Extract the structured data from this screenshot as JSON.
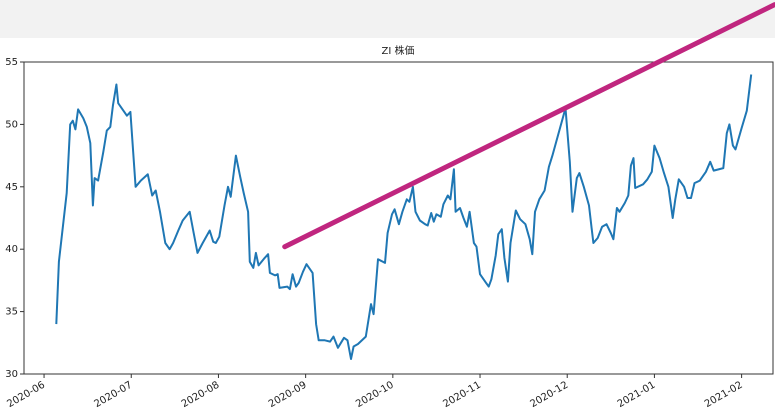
{
  "chart_data": {
    "type": "line",
    "title": "ZI 株価",
    "x": [
      0.14,
      0.17,
      0.26,
      0.3,
      0.33,
      0.36,
      0.39,
      0.45,
      0.49,
      0.53,
      0.56,
      0.58,
      0.62,
      0.68,
      0.72,
      0.76,
      0.79,
      0.83,
      0.85,
      0.92,
      0.95,
      0.99,
      1.02,
      1.05,
      1.11,
      1.19,
      1.24,
      1.28,
      1.33,
      1.39,
      1.44,
      1.48,
      1.54,
      1.59,
      1.67,
      1.71,
      1.76,
      1.82,
      1.9,
      1.94,
      1.97,
      2.01,
      2.07,
      2.11,
      2.14,
      2.2,
      2.25,
      2.29,
      2.34,
      2.36,
      2.4,
      2.43,
      2.46,
      2.53,
      2.57,
      2.59,
      2.65,
      2.68,
      2.7,
      2.79,
      2.82,
      2.85,
      2.89,
      2.92,
      2.97,
      3.01,
      3.08,
      3.12,
      3.15,
      3.22,
      3.28,
      3.32,
      3.37,
      3.44,
      3.48,
      3.52,
      3.55,
      3.6,
      3.69,
      3.75,
      3.78,
      3.83,
      3.91,
      3.94,
      3.99,
      4.02,
      4.07,
      4.11,
      4.16,
      4.19,
      4.23,
      4.26,
      4.31,
      4.37,
      4.4,
      4.44,
      4.47,
      4.5,
      4.55,
      4.58,
      4.63,
      4.66,
      4.7,
      4.72,
      4.77,
      4.81,
      4.85,
      4.88,
      4.93,
      4.96,
      5.0,
      5.07,
      5.1,
      5.13,
      5.18,
      5.21,
      5.25,
      5.28,
      5.32,
      5.35,
      5.41,
      5.46,
      5.52,
      5.57,
      5.6,
      5.63,
      5.68,
      5.74,
      5.79,
      5.83,
      5.98,
      6.03,
      6.06,
      6.11,
      6.14,
      6.19,
      6.25,
      6.28,
      6.3,
      6.35,
      6.4,
      6.45,
      6.5,
      6.53,
      6.57,
      6.6,
      6.66,
      6.7,
      6.73,
      6.76,
      6.78,
      6.87,
      6.92,
      6.97,
      7.0,
      7.06,
      7.11,
      7.16,
      7.21,
      7.24,
      7.28,
      7.34,
      7.38,
      7.42,
      7.46,
      7.52,
      7.59,
      7.64,
      7.68,
      7.79,
      7.83,
      7.86,
      7.9,
      7.93,
      8.0,
      8.06,
      8.11
    ],
    "series": [
      {
        "color": "#1f77b4",
        "values": [
          34,
          39,
          44.5,
          50,
          50.3,
          49.6,
          51.2,
          50.5,
          49.8,
          48.5,
          43.5,
          45.7,
          45.5,
          47.8,
          49.5,
          49.8,
          51.5,
          53.2,
          51.7,
          51,
          50.7,
          51,
          48,
          45,
          45.5,
          46,
          44.3,
          44.7,
          43,
          40.5,
          40,
          40.5,
          41.5,
          42.3,
          43,
          41.5,
          39.7,
          40.5,
          41.5,
          40.6,
          40.5,
          41,
          43.5,
          45,
          44.2,
          47.5,
          45.8,
          44.5,
          43,
          39,
          38.5,
          39.7,
          38.7,
          39.3,
          39.6,
          38.1,
          37.9,
          38,
          36.9,
          37,
          36.8,
          38,
          37,
          37.3,
          38.2,
          38.8,
          38.1,
          34,
          32.7,
          32.7,
          32.6,
          33,
          32.1,
          32.9,
          32.7,
          31.2,
          32.2,
          32.4,
          33,
          35.6,
          34.8,
          39.2,
          38.9,
          41.3,
          42.8,
          43.2,
          42,
          43,
          44,
          43.8,
          45,
          43,
          42.3,
          42,
          41.9,
          42.9,
          42.2,
          42.8,
          42.6,
          43.6,
          44.3,
          44,
          46.4,
          43,
          43.3,
          42.5,
          41.8,
          43,
          40.5,
          40.2,
          38,
          37.3,
          37,
          37.6,
          39.5,
          41.2,
          41.6,
          39.3,
          37.4,
          40.5,
          43.1,
          42.4,
          42,
          40.8,
          39.6,
          43,
          44,
          44.7,
          46.6,
          47.5,
          51.3,
          47,
          43,
          45.7,
          46.1,
          45,
          43.5,
          41.7,
          40.5,
          40.9,
          41.8,
          42,
          41.3,
          40.8,
          43.3,
          43,
          43.7,
          44.3,
          46.7,
          47.3,
          44.9,
          45.2,
          45.6,
          46.2,
          48.3,
          47.3,
          46.1,
          45,
          42.5,
          44,
          45.6,
          45,
          44.1,
          44.1,
          45.3,
          45.5,
          46.2,
          47,
          46.3,
          46.5,
          49.3,
          50,
          48.3,
          48,
          49.7,
          51.1,
          54
        ]
      }
    ],
    "trend_line": {
      "x": [
        2.76,
        8.38
      ],
      "values": [
        40.2,
        59.6
      ],
      "color": "#c0267f"
    },
    "xlim": [
      -0.23,
      8.36
    ],
    "xticks": [
      {
        "value": 0,
        "label": "2020-06"
      },
      {
        "value": 1,
        "label": "2020-07"
      },
      {
        "value": 2,
        "label": "2020-08"
      },
      {
        "value": 3,
        "label": "2020-09"
      },
      {
        "value": 4,
        "label": "2020-10"
      },
      {
        "value": 5,
        "label": "2020-11"
      },
      {
        "value": 6,
        "label": "2020-12"
      },
      {
        "value": 7,
        "label": "2021-01"
      },
      {
        "value": 8,
        "label": "2021-02"
      }
    ],
    "ylim": [
      30,
      55
    ],
    "yticks": [
      30,
      35,
      40,
      45,
      50,
      55
    ],
    "grid": false
  }
}
